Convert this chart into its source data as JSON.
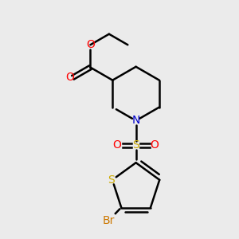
{
  "background_color": "#ebebeb",
  "bond_color": "#000000",
  "atom_colors": {
    "O": "#ff0000",
    "N": "#0000cc",
    "S_sulfonyl": "#ccaa00",
    "S_thiophene": "#ccaa00",
    "Br": "#cc7700",
    "C": "#000000"
  },
  "figsize": [
    3.0,
    3.0
  ],
  "dpi": 100
}
